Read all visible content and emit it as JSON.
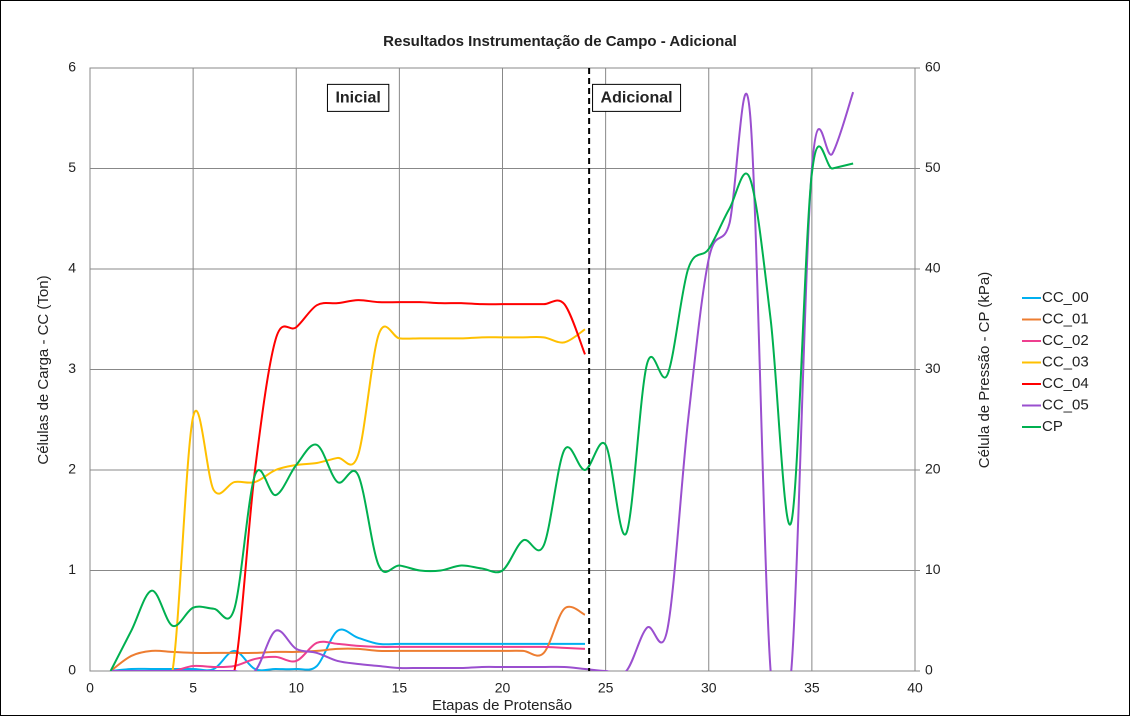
{
  "chart_data": {
    "type": "line",
    "title": "Resultados Instrumentação de Campo - Adicional",
    "xlabel": "Etapas de Protensão",
    "ylabel": "Células de Carga - CC (Ton)",
    "y2label": "Célula de Pressão - CP (kPa)",
    "annotations": [
      {
        "text": "Inicial",
        "x": 13,
        "y": 5.7
      },
      {
        "text": "Adicional",
        "x": 26.5,
        "y": 5.7
      }
    ],
    "divider": {
      "x": 24.2
    },
    "xlim": [
      0,
      40
    ],
    "xticks": [
      0,
      5,
      10,
      15,
      20,
      25,
      30,
      35,
      40
    ],
    "ylim": [
      0,
      6
    ],
    "yticks": [
      0,
      1,
      2,
      3,
      4,
      5,
      6
    ],
    "y2lim": [
      0,
      60
    ],
    "y2ticks": [
      0,
      10,
      20,
      30,
      40,
      50,
      60
    ],
    "grid": true,
    "legend": "right",
    "series": [
      {
        "name": "CC_00",
        "color": "#00b0f0",
        "x": [
          1,
          2,
          3,
          4,
          5,
          6,
          7,
          8,
          9,
          10,
          11,
          12,
          13,
          14,
          15,
          16,
          17,
          18,
          19,
          20,
          21,
          22,
          23,
          24
        ],
        "values": [
          0,
          0.02,
          0.02,
          0.02,
          0.02,
          0.02,
          0.2,
          0.02,
          0.02,
          0.02,
          0.05,
          0.4,
          0.33,
          0.27,
          0.27,
          0.27,
          0.27,
          0.27,
          0.27,
          0.27,
          0.27,
          0.27,
          0.27,
          0.27
        ]
      },
      {
        "name": "CC_01",
        "color": "#ed7d31",
        "x": [
          1,
          2,
          3,
          4,
          5,
          6,
          7,
          8,
          9,
          10,
          11,
          12,
          13,
          14,
          15,
          16,
          17,
          18,
          19,
          20,
          21,
          22,
          23,
          24
        ],
        "values": [
          0,
          0.15,
          0.2,
          0.19,
          0.18,
          0.18,
          0.18,
          0.18,
          0.19,
          0.19,
          0.2,
          0.22,
          0.22,
          0.2,
          0.2,
          0.2,
          0.2,
          0.2,
          0.2,
          0.2,
          0.2,
          0.18,
          0.62,
          0.56
        ]
      },
      {
        "name": "CC_02",
        "color": "#ee3f8f",
        "x": [
          1,
          2,
          3,
          4,
          5,
          6,
          7,
          8,
          9,
          10,
          11,
          12,
          13,
          14,
          15,
          16,
          17,
          18,
          19,
          20,
          21,
          22,
          23,
          24
        ],
        "values": [
          0,
          0,
          0,
          0,
          0.05,
          0.04,
          0.05,
          0.12,
          0.14,
          0.1,
          0.28,
          0.27,
          0.25,
          0.24,
          0.24,
          0.24,
          0.24,
          0.24,
          0.24,
          0.24,
          0.24,
          0.24,
          0.23,
          0.22
        ]
      },
      {
        "name": "CC_03",
        "color": "#ffc000",
        "x": [
          1,
          2,
          3,
          4,
          5,
          6,
          7,
          8,
          9,
          10,
          11,
          12,
          13,
          14,
          15,
          16,
          17,
          18,
          19,
          20,
          21,
          22,
          23,
          24
        ],
        "values": [
          0,
          0,
          0,
          0,
          2.53,
          1.8,
          1.88,
          1.88,
          2.0,
          2.05,
          2.07,
          2.12,
          2.15,
          3.35,
          3.31,
          3.31,
          3.31,
          3.31,
          3.32,
          3.32,
          3.32,
          3.32,
          3.27,
          3.4
        ]
      },
      {
        "name": "CC_04",
        "color": "#ff0000",
        "x": [
          1,
          2,
          3,
          4,
          5,
          6,
          7,
          8,
          9,
          10,
          11,
          12,
          13,
          14,
          15,
          16,
          17,
          18,
          19,
          20,
          21,
          22,
          23,
          24
        ],
        "values": [
          0,
          0,
          0,
          0,
          0,
          0,
          0,
          2.0,
          3.3,
          3.42,
          3.64,
          3.66,
          3.69,
          3.67,
          3.67,
          3.67,
          3.66,
          3.66,
          3.65,
          3.65,
          3.65,
          3.65,
          3.65,
          3.15
        ]
      },
      {
        "name": "CC_05",
        "color": "#9a4fcf",
        "x": [
          1,
          2,
          3,
          4,
          5,
          6,
          7,
          8,
          9,
          10,
          11,
          12,
          13,
          14,
          15,
          16,
          17,
          18,
          19,
          20,
          21,
          22,
          23,
          24,
          25,
          26,
          27,
          28,
          29,
          30,
          31,
          32,
          33,
          34,
          35,
          36,
          37
        ],
        "values": [
          0,
          0,
          0,
          0,
          0,
          0,
          0,
          0,
          0.4,
          0.22,
          0.18,
          0.1,
          0.07,
          0.05,
          0.03,
          0.03,
          0.03,
          0.03,
          0.04,
          0.04,
          0.04,
          0.04,
          0.04,
          0.02,
          0,
          0,
          0.43,
          0.42,
          2.5,
          4.1,
          4.45,
          5.55,
          0,
          0,
          5.0,
          5.15,
          5.76
        ]
      },
      {
        "name": "CP",
        "color": "#00b050",
        "axis": "y2",
        "x": [
          1,
          2,
          3,
          4,
          5,
          6,
          7,
          8,
          9,
          10,
          11,
          12,
          13,
          14,
          15,
          16,
          17,
          18,
          19,
          20,
          21,
          22,
          23,
          24,
          25,
          26,
          27,
          28,
          29,
          30,
          31,
          32,
          33,
          34,
          35,
          36,
          37
        ],
        "values": [
          0,
          4,
          8,
          4.5,
          6.3,
          6.2,
          6.2,
          19.5,
          17.5,
          20.5,
          22.5,
          18.8,
          19.5,
          10.5,
          10.5,
          10,
          10,
          10.5,
          10.2,
          10,
          13,
          12.5,
          22,
          20,
          22.5,
          13.7,
          30.5,
          29.5,
          40,
          42,
          46,
          49,
          35,
          14.8,
          49.5,
          50,
          50.5
        ]
      }
    ]
  }
}
